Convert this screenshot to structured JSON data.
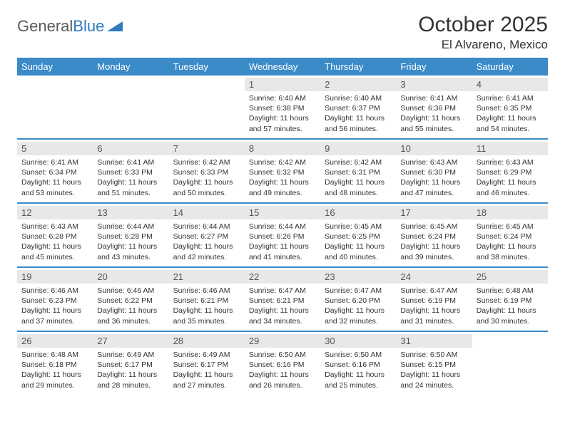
{
  "brand": {
    "part1": "General",
    "part2": "Blue"
  },
  "title": "October 2025",
  "location": "El Alvareno, Mexico",
  "colors": {
    "header_bg": "#3b8bc9",
    "header_text": "#ffffff",
    "day_num_bg": "#e8e8e8",
    "border": "#3b8bc9",
    "logo_gray": "#5a5a5a",
    "logo_blue": "#2f7bbf"
  },
  "daynames": [
    "Sunday",
    "Monday",
    "Tuesday",
    "Wednesday",
    "Thursday",
    "Friday",
    "Saturday"
  ],
  "weeks": [
    [
      null,
      null,
      null,
      {
        "n": "1",
        "sr": "6:40 AM",
        "ss": "6:38 PM",
        "dl": "11 hours and 57 minutes."
      },
      {
        "n": "2",
        "sr": "6:40 AM",
        "ss": "6:37 PM",
        "dl": "11 hours and 56 minutes."
      },
      {
        "n": "3",
        "sr": "6:41 AM",
        "ss": "6:36 PM",
        "dl": "11 hours and 55 minutes."
      },
      {
        "n": "4",
        "sr": "6:41 AM",
        "ss": "6:35 PM",
        "dl": "11 hours and 54 minutes."
      }
    ],
    [
      {
        "n": "5",
        "sr": "6:41 AM",
        "ss": "6:34 PM",
        "dl": "11 hours and 53 minutes."
      },
      {
        "n": "6",
        "sr": "6:41 AM",
        "ss": "6:33 PM",
        "dl": "11 hours and 51 minutes."
      },
      {
        "n": "7",
        "sr": "6:42 AM",
        "ss": "6:33 PM",
        "dl": "11 hours and 50 minutes."
      },
      {
        "n": "8",
        "sr": "6:42 AM",
        "ss": "6:32 PM",
        "dl": "11 hours and 49 minutes."
      },
      {
        "n": "9",
        "sr": "6:42 AM",
        "ss": "6:31 PM",
        "dl": "11 hours and 48 minutes."
      },
      {
        "n": "10",
        "sr": "6:43 AM",
        "ss": "6:30 PM",
        "dl": "11 hours and 47 minutes."
      },
      {
        "n": "11",
        "sr": "6:43 AM",
        "ss": "6:29 PM",
        "dl": "11 hours and 46 minutes."
      }
    ],
    [
      {
        "n": "12",
        "sr": "6:43 AM",
        "ss": "6:28 PM",
        "dl": "11 hours and 45 minutes."
      },
      {
        "n": "13",
        "sr": "6:44 AM",
        "ss": "6:28 PM",
        "dl": "11 hours and 43 minutes."
      },
      {
        "n": "14",
        "sr": "6:44 AM",
        "ss": "6:27 PM",
        "dl": "11 hours and 42 minutes."
      },
      {
        "n": "15",
        "sr": "6:44 AM",
        "ss": "6:26 PM",
        "dl": "11 hours and 41 minutes."
      },
      {
        "n": "16",
        "sr": "6:45 AM",
        "ss": "6:25 PM",
        "dl": "11 hours and 40 minutes."
      },
      {
        "n": "17",
        "sr": "6:45 AM",
        "ss": "6:24 PM",
        "dl": "11 hours and 39 minutes."
      },
      {
        "n": "18",
        "sr": "6:45 AM",
        "ss": "6:24 PM",
        "dl": "11 hours and 38 minutes."
      }
    ],
    [
      {
        "n": "19",
        "sr": "6:46 AM",
        "ss": "6:23 PM",
        "dl": "11 hours and 37 minutes."
      },
      {
        "n": "20",
        "sr": "6:46 AM",
        "ss": "6:22 PM",
        "dl": "11 hours and 36 minutes."
      },
      {
        "n": "21",
        "sr": "6:46 AM",
        "ss": "6:21 PM",
        "dl": "11 hours and 35 minutes."
      },
      {
        "n": "22",
        "sr": "6:47 AM",
        "ss": "6:21 PM",
        "dl": "11 hours and 34 minutes."
      },
      {
        "n": "23",
        "sr": "6:47 AM",
        "ss": "6:20 PM",
        "dl": "11 hours and 32 minutes."
      },
      {
        "n": "24",
        "sr": "6:47 AM",
        "ss": "6:19 PM",
        "dl": "11 hours and 31 minutes."
      },
      {
        "n": "25",
        "sr": "6:48 AM",
        "ss": "6:19 PM",
        "dl": "11 hours and 30 minutes."
      }
    ],
    [
      {
        "n": "26",
        "sr": "6:48 AM",
        "ss": "6:18 PM",
        "dl": "11 hours and 29 minutes."
      },
      {
        "n": "27",
        "sr": "6:49 AM",
        "ss": "6:17 PM",
        "dl": "11 hours and 28 minutes."
      },
      {
        "n": "28",
        "sr": "6:49 AM",
        "ss": "6:17 PM",
        "dl": "11 hours and 27 minutes."
      },
      {
        "n": "29",
        "sr": "6:50 AM",
        "ss": "6:16 PM",
        "dl": "11 hours and 26 minutes."
      },
      {
        "n": "30",
        "sr": "6:50 AM",
        "ss": "6:16 PM",
        "dl": "11 hours and 25 minutes."
      },
      {
        "n": "31",
        "sr": "6:50 AM",
        "ss": "6:15 PM",
        "dl": "11 hours and 24 minutes."
      },
      null
    ]
  ],
  "labels": {
    "sunrise": "Sunrise:",
    "sunset": "Sunset:",
    "daylight": "Daylight:"
  }
}
